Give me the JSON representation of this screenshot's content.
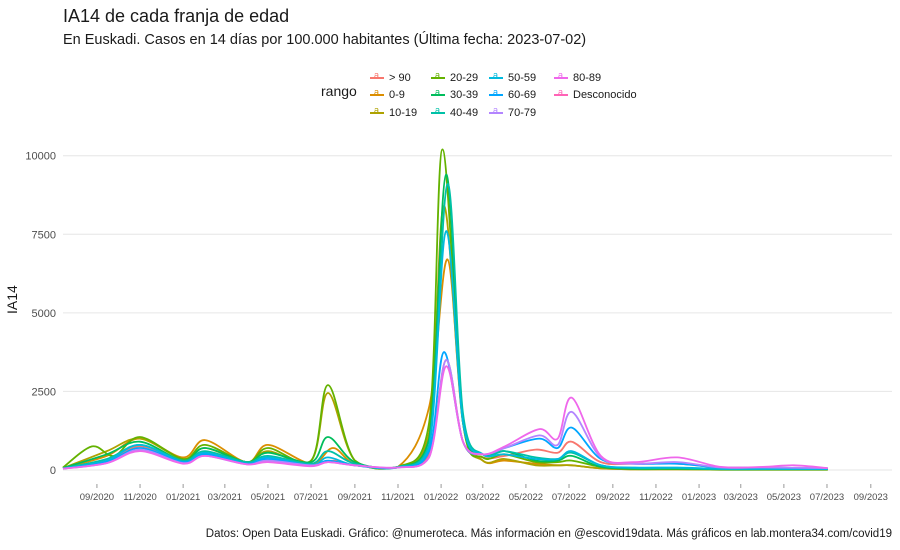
{
  "chart_data": {
    "type": "line",
    "title": "IA14 de cada franja de edad",
    "subtitle": "En Euskadi. Casos en 14 días por 100.000 habitantes  (Última fecha: 2023-07-02)",
    "xlabel": "",
    "ylabel": "IA14",
    "caption": "Datos: Open Data Euskadi. Gráfico: @numeroteca. Más información en @escovid19data.  Más gráficos en lab.montera34.com/covid19",
    "legend_title": "rango",
    "legend_position": "top",
    "grid": true,
    "ylim": [
      0,
      10500
    ],
    "xlim": [
      "2020-07-15",
      "2023-10-01"
    ],
    "yticks": [
      0,
      2500,
      5000,
      7500,
      10000
    ],
    "ytick_labels": [
      "0",
      "2500",
      "5000",
      "7500",
      "10000"
    ],
    "xticks": [
      "2020-09-01",
      "2020-11-01",
      "2021-01-01",
      "2021-03-01",
      "2021-05-01",
      "2021-07-01",
      "2021-09-01",
      "2021-11-01",
      "2022-01-01",
      "2022-03-01",
      "2022-05-01",
      "2022-07-01",
      "2022-09-01",
      "2022-11-01",
      "2023-01-01",
      "2023-03-01",
      "2023-05-01",
      "2023-07-01",
      "2023-09-01"
    ],
    "xtick_labels": [
      "09/2020",
      "11/2020",
      "01/2021",
      "03/2021",
      "05/2021",
      "07/2021",
      "09/2021",
      "11/2021",
      "01/2022",
      "03/2022",
      "05/2022",
      "07/2022",
      "09/2022",
      "11/2022",
      "01/2023",
      "03/2023",
      "05/2023",
      "07/2023",
      "09/2023"
    ],
    "series": [
      {
        "name": "> 90",
        "color": "#f8766d",
        "x": [
          "2020-07-15",
          "2020-09-15",
          "2020-11-01",
          "2021-01-01",
          "2021-02-01",
          "2021-04-01",
          "2021-05-01",
          "2021-07-01",
          "2021-08-01",
          "2021-09-01",
          "2021-11-01",
          "2021-12-15",
          "2022-01-08",
          "2022-02-01",
          "2022-03-01",
          "2022-04-01",
          "2022-05-15",
          "2022-06-15",
          "2022-07-05",
          "2022-08-15",
          "2022-10-01",
          "2022-12-01",
          "2023-02-01",
          "2023-04-01",
          "2023-07-02"
        ],
        "values": [
          50,
          280,
          750,
          300,
          500,
          250,
          300,
          150,
          300,
          150,
          80,
          500,
          3500,
          900,
          400,
          450,
          650,
          550,
          900,
          250,
          200,
          200,
          80,
          80,
          50
        ]
      },
      {
        "name": "0-9",
        "color": "#db8e00",
        "x": [
          "2020-07-15",
          "2020-09-15",
          "2020-11-01",
          "2021-01-01",
          "2021-02-01",
          "2021-04-01",
          "2021-05-01",
          "2021-07-01",
          "2021-08-01",
          "2021-09-01",
          "2021-11-01",
          "2021-12-15",
          "2022-01-10",
          "2022-02-01",
          "2022-03-01",
          "2022-04-01",
          "2022-05-15",
          "2022-06-15",
          "2022-07-05",
          "2022-08-15",
          "2022-10-01",
          "2022-12-01",
          "2023-02-01",
          "2023-04-01",
          "2023-07-02"
        ],
        "values": [
          60,
          450,
          1000,
          400,
          950,
          250,
          800,
          200,
          700,
          200,
          100,
          2000,
          6700,
          1500,
          300,
          300,
          200,
          150,
          150,
          50,
          20,
          20,
          10,
          10,
          10
        ]
      },
      {
        "name": "10-19",
        "color": "#aea200",
        "x": [
          "2020-07-15",
          "2020-09-15",
          "2020-11-01",
          "2021-01-01",
          "2021-02-01",
          "2021-04-01",
          "2021-05-01",
          "2021-07-01",
          "2021-07-25",
          "2021-09-01",
          "2021-11-01",
          "2021-12-15",
          "2022-01-05",
          "2022-02-01",
          "2022-03-01",
          "2022-04-01",
          "2022-05-15",
          "2022-06-15",
          "2022-07-05",
          "2022-08-15",
          "2022-10-01",
          "2022-12-01",
          "2023-02-01",
          "2023-04-01",
          "2023-07-02"
        ],
        "values": [
          60,
          600,
          1000,
          350,
          700,
          250,
          600,
          300,
          2450,
          300,
          100,
          1200,
          8400,
          1500,
          300,
          350,
          150,
          150,
          150,
          50,
          20,
          20,
          10,
          10,
          10
        ]
      },
      {
        "name": "20-29",
        "color": "#64b200",
        "x": [
          "2020-07-15",
          "2020-08-25",
          "2020-09-25",
          "2020-11-01",
          "2021-01-01",
          "2021-02-01",
          "2021-04-01",
          "2021-05-01",
          "2021-07-01",
          "2021-07-25",
          "2021-09-01",
          "2021-11-01",
          "2021-12-15",
          "2022-01-03",
          "2022-02-01",
          "2022-03-01",
          "2022-04-01",
          "2022-05-15",
          "2022-06-15",
          "2022-07-05",
          "2022-08-15",
          "2022-10-01",
          "2022-12-01",
          "2023-02-01",
          "2023-04-01",
          "2023-07-02"
        ],
        "values": [
          80,
          750,
          450,
          1050,
          350,
          800,
          250,
          700,
          300,
          2700,
          300,
          100,
          1500,
          10200,
          1500,
          400,
          500,
          250,
          250,
          300,
          100,
          30,
          30,
          20,
          20,
          20
        ]
      },
      {
        "name": "30-39",
        "color": "#00bd5c",
        "x": [
          "2020-07-15",
          "2020-09-15",
          "2020-11-01",
          "2021-01-01",
          "2021-02-01",
          "2021-04-01",
          "2021-05-01",
          "2021-07-01",
          "2021-07-25",
          "2021-09-01",
          "2021-11-01",
          "2021-12-15",
          "2022-01-08",
          "2022-02-01",
          "2022-03-01",
          "2022-04-01",
          "2022-05-15",
          "2022-06-15",
          "2022-07-05",
          "2022-08-15",
          "2022-10-01",
          "2022-12-01",
          "2023-02-01",
          "2023-04-01",
          "2023-07-02"
        ],
        "values": [
          60,
          500,
          900,
          300,
          700,
          250,
          550,
          250,
          1050,
          250,
          100,
          1000,
          9400,
          1600,
          500,
          600,
          300,
          300,
          450,
          100,
          40,
          40,
          20,
          20,
          20
        ]
      },
      {
        "name": "40-49",
        "color": "#00c1a7",
        "x": [
          "2020-07-15",
          "2020-09-15",
          "2020-11-01",
          "2021-01-01",
          "2021-02-01",
          "2021-04-01",
          "2021-05-01",
          "2021-07-01",
          "2021-07-25",
          "2021-09-01",
          "2021-11-01",
          "2021-12-15",
          "2022-01-10",
          "2022-02-01",
          "2022-03-01",
          "2022-04-01",
          "2022-05-15",
          "2022-06-15",
          "2022-07-05",
          "2022-08-15",
          "2022-10-01",
          "2022-12-01",
          "2023-02-01",
          "2023-04-01",
          "2023-07-02"
        ],
        "values": [
          50,
          350,
          800,
          300,
          600,
          250,
          450,
          200,
          600,
          200,
          100,
          800,
          9100,
          1800,
          500,
          600,
          400,
          350,
          550,
          150,
          60,
          60,
          30,
          30,
          30
        ]
      },
      {
        "name": "50-59",
        "color": "#00bade",
        "x": [
          "2020-07-15",
          "2020-09-15",
          "2020-11-01",
          "2021-01-01",
          "2021-02-01",
          "2021-04-01",
          "2021-05-01",
          "2021-07-01",
          "2021-07-25",
          "2021-09-01",
          "2021-11-01",
          "2021-12-15",
          "2022-01-08",
          "2022-02-01",
          "2022-03-01",
          "2022-04-01",
          "2022-05-15",
          "2022-06-15",
          "2022-07-05",
          "2022-08-15",
          "2022-10-01",
          "2022-12-01",
          "2023-02-01",
          "2023-04-01",
          "2023-07-02"
        ],
        "values": [
          50,
          300,
          800,
          250,
          550,
          200,
          400,
          150,
          400,
          150,
          80,
          700,
          7600,
          1500,
          500,
          500,
          350,
          350,
          600,
          150,
          80,
          80,
          40,
          40,
          30
        ]
      },
      {
        "name": "60-69",
        "color": "#00a6ff",
        "x": [
          "2020-07-15",
          "2020-09-15",
          "2020-11-01",
          "2021-01-01",
          "2021-02-01",
          "2021-04-01",
          "2021-05-01",
          "2021-07-01",
          "2021-07-25",
          "2021-09-01",
          "2021-11-01",
          "2021-12-15",
          "2022-01-05",
          "2022-02-01",
          "2022-03-01",
          "2022-04-01",
          "2022-05-20",
          "2022-06-15",
          "2022-07-05",
          "2022-08-15",
          "2022-10-01",
          "2022-12-01",
          "2023-02-01",
          "2023-04-01",
          "2023-07-02"
        ],
        "values": [
          40,
          250,
          700,
          250,
          500,
          200,
          350,
          150,
          300,
          150,
          80,
          600,
          3750,
          900,
          500,
          700,
          1000,
          700,
          1350,
          350,
          200,
          200,
          80,
          80,
          50
        ]
      },
      {
        "name": "70-79",
        "color": "#b385ff",
        "x": [
          "2020-07-15",
          "2020-09-15",
          "2020-11-01",
          "2021-01-01",
          "2021-02-01",
          "2021-04-01",
          "2021-05-01",
          "2021-07-01",
          "2021-07-25",
          "2021-09-01",
          "2021-11-01",
          "2021-12-15",
          "2022-01-08",
          "2022-02-01",
          "2022-03-01",
          "2022-04-01",
          "2022-05-20",
          "2022-06-15",
          "2022-07-05",
          "2022-08-15",
          "2022-10-01",
          "2022-12-01",
          "2023-02-01",
          "2023-04-01",
          "2023-07-02"
        ],
        "values": [
          40,
          220,
          650,
          220,
          450,
          180,
          300,
          150,
          250,
          150,
          80,
          400,
          3500,
          900,
          500,
          700,
          1100,
          800,
          1850,
          400,
          200,
          250,
          80,
          80,
          60
        ]
      },
      {
        "name": "80-89",
        "color": "#ef67eb",
        "x": [
          "2020-07-15",
          "2020-09-15",
          "2020-11-01",
          "2021-01-01",
          "2021-02-01",
          "2021-04-01",
          "2021-05-01",
          "2021-07-01",
          "2021-07-25",
          "2021-09-01",
          "2021-11-01",
          "2021-12-15",
          "2022-01-08",
          "2022-02-01",
          "2022-03-01",
          "2022-04-01",
          "2022-05-20",
          "2022-06-15",
          "2022-07-05",
          "2022-08-15",
          "2022-10-01",
          "2022-12-01",
          "2023-02-01",
          "2023-04-01",
          "2023-05-15",
          "2023-07-02"
        ],
        "values": [
          40,
          220,
          600,
          200,
          450,
          180,
          250,
          120,
          250,
          150,
          80,
          400,
          3300,
          900,
          500,
          750,
          1300,
          1000,
          2300,
          450,
          250,
          400,
          100,
          100,
          150,
          60
        ]
      },
      {
        "name": "Desconocido",
        "color": "#ff63b6",
        "x": [],
        "values": []
      }
    ]
  }
}
